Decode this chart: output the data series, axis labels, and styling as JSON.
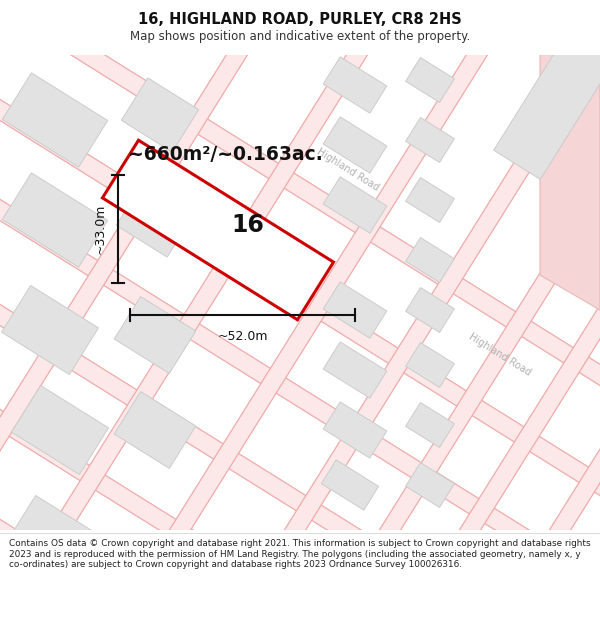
{
  "title": "16, HIGHLAND ROAD, PURLEY, CR8 2HS",
  "subtitle": "Map shows position and indicative extent of the property.",
  "area_text": "~660m²/~0.163ac.",
  "width_label": "~52.0m",
  "height_label": "~33.0m",
  "number_label": "16",
  "background_color": "#ffffff",
  "map_bg_color": "#f8f8f8",
  "road_line_color": "#f0b8b8",
  "road_fill_color": "#fdf0f0",
  "block_fill_color": "#e2e2e2",
  "block_edge_color": "#cccccc",
  "highlight_fill": "#f5d5d5",
  "highlight_edge": "#e8b8b8",
  "plot_outline_color": "#cc0000",
  "plot_fill_color": "#ffffff",
  "dimension_color": "#111111",
  "road_label_color": "#b0b0b0",
  "footer_text": "Contains OS data © Crown copyright and database right 2021. This information is subject to Crown copyright and database rights 2023 and is reproduced with the permission of HM Land Registry. The polygons (including the associated geometry, namely x, y co-ordinates) are subject to Crown copyright and database rights 2023 Ordnance Survey 100026316.",
  "figsize": [
    6.0,
    6.25
  ],
  "dpi": 100
}
